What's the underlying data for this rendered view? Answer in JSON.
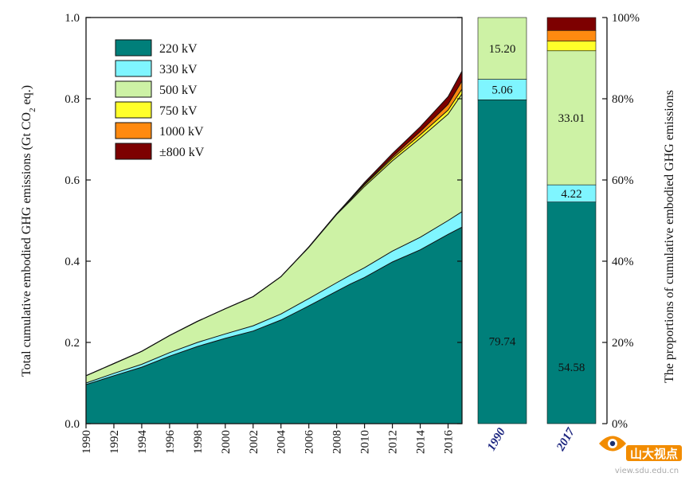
{
  "colors": {
    "kv220": "#007f7a",
    "kv330": "#7ff5ff",
    "kv500": "#cdf2a5",
    "kv750": "#ffff2a",
    "kv1000": "#ff8a10",
    "kv800": "#7d0000"
  },
  "chart_data": [
    {
      "type": "area",
      "stacked": true,
      "ylabel": "Total cumulative embodied GHG emissions (Gt CO2 eq.)",
      "ylabel_parts": {
        "pre": "Total cumulative embodied GHG emissions (Gt CO",
        "sub": "2",
        "post": " eq.)"
      },
      "ylim": [
        0,
        1.0
      ],
      "yticks": [
        "0.0",
        "0.2",
        "0.4",
        "0.6",
        "0.8",
        "1.0"
      ],
      "xlim": [
        1990,
        2017
      ],
      "xticks": [
        "1990",
        "1992",
        "1994",
        "1996",
        "1998",
        "2000",
        "2002",
        "2004",
        "2006",
        "2008",
        "2010",
        "2012",
        "2014",
        "2016"
      ],
      "x": [
        1990,
        1992,
        1994,
        1996,
        1998,
        2000,
        2002,
        2004,
        2006,
        2008,
        2009,
        2010,
        2012,
        2014,
        2016,
        2017
      ],
      "legend_position": "top-left",
      "series": [
        {
          "name": "220 kV",
          "color_key": "kv220",
          "values": [
            0.096,
            0.118,
            0.139,
            0.166,
            0.19,
            0.21,
            0.228,
            0.255,
            0.29,
            0.326,
            0.344,
            0.36,
            0.398,
            0.428,
            0.466,
            0.484
          ]
        },
        {
          "name": "330 kV",
          "color_key": "kv330",
          "values": [
            0.004,
            0.006,
            0.007,
            0.009,
            0.01,
            0.011,
            0.013,
            0.015,
            0.018,
            0.021,
            0.022,
            0.024,
            0.027,
            0.031,
            0.034,
            0.038
          ]
        },
        {
          "name": "500 kV",
          "color_key": "kv500",
          "values": [
            0.018,
            0.024,
            0.032,
            0.042,
            0.052,
            0.062,
            0.072,
            0.092,
            0.126,
            0.168,
            0.183,
            0.2,
            0.222,
            0.244,
            0.262,
            0.29
          ]
        },
        {
          "name": "750 kV",
          "color_key": "kv750",
          "values": [
            0,
            0,
            0,
            0,
            0,
            0,
            0,
            0,
            0.001,
            0.002,
            0.003,
            0.004,
            0.006,
            0.008,
            0.01,
            0.012
          ]
        },
        {
          "name": "1000 kV",
          "color_key": "kv1000",
          "values": [
            0,
            0,
            0,
            0,
            0,
            0,
            0,
            0,
            0,
            0,
            0.001,
            0.002,
            0.004,
            0.008,
            0.014,
            0.02
          ]
        },
        {
          "name": "±800 kV",
          "color_key": "kv800",
          "values": [
            0,
            0,
            0,
            0,
            0,
            0,
            0,
            0,
            0,
            0,
            0.002,
            0.004,
            0.008,
            0.012,
            0.019,
            0.024
          ]
        }
      ]
    },
    {
      "type": "bar",
      "stacked": true,
      "percent": true,
      "ylabel": "The proportions of cumulative embodied GHG emissions",
      "yticks": [
        "0%",
        "20%",
        "40%",
        "60%",
        "80%",
        "100%"
      ],
      "categories": [
        "1990",
        "2017"
      ],
      "series": [
        {
          "name": "220 kV",
          "color_key": "kv220",
          "values": [
            79.74,
            54.58
          ],
          "labels": [
            "79.74",
            "54.58"
          ]
        },
        {
          "name": "330 kV",
          "color_key": "kv330",
          "values": [
            5.06,
            4.22
          ],
          "labels": [
            "5.06",
            "4.22"
          ]
        },
        {
          "name": "500 kV",
          "color_key": "kv500",
          "values": [
            15.2,
            33.01
          ],
          "labels": [
            "15.20",
            "33.01"
          ]
        },
        {
          "name": "750 kV",
          "color_key": "kv750",
          "values": [
            0,
            2.4
          ],
          "labels": [
            "",
            ""
          ]
        },
        {
          "name": "1000 kV",
          "color_key": "kv1000",
          "values": [
            0,
            2.6
          ],
          "labels": [
            "",
            ""
          ]
        },
        {
          "name": "±800 kV",
          "color_key": "kv800",
          "values": [
            0,
            3.19
          ],
          "labels": [
            "",
            ""
          ]
        }
      ]
    }
  ],
  "watermark": {
    "brand_text": "山大视点",
    "url_text": "view.sdu.edu.cn"
  }
}
